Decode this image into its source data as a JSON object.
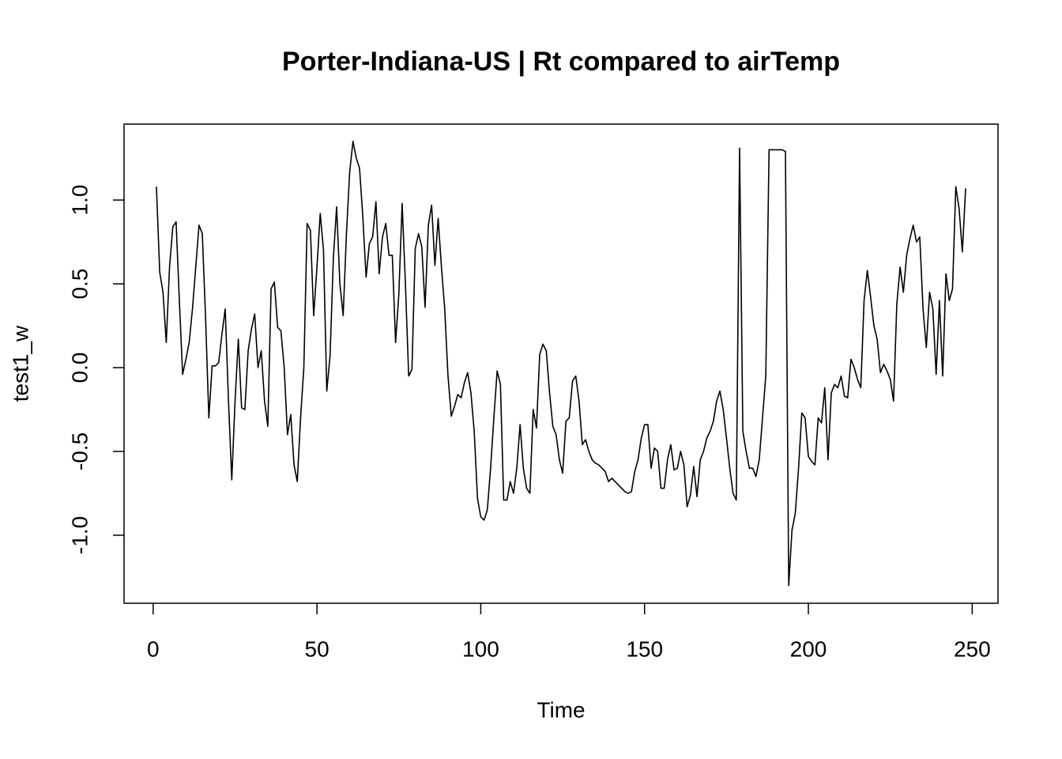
{
  "chart_data": {
    "type": "line",
    "title": "Porter-Indiana-US | Rt compared to airTemp",
    "xlabel": "Time",
    "ylabel": "test1_w",
    "color": "#000000",
    "x": [
      1,
      2,
      3,
      4,
      5,
      6,
      7,
      8,
      9,
      10,
      11,
      12,
      13,
      14,
      15,
      16,
      17,
      18,
      19,
      20,
      21,
      22,
      23,
      24,
      25,
      26,
      27,
      28,
      29,
      30,
      31,
      32,
      33,
      34,
      35,
      36,
      37,
      38,
      39,
      40,
      41,
      42,
      43,
      44,
      45,
      46,
      47,
      48,
      49,
      50,
      51,
      52,
      53,
      54,
      55,
      56,
      57,
      58,
      59,
      60,
      61,
      62,
      63,
      64,
      65,
      66,
      67,
      68,
      69,
      70,
      71,
      72,
      73,
      74,
      75,
      76,
      77,
      78,
      79,
      80,
      81,
      82,
      83,
      84,
      85,
      86,
      87,
      88,
      89,
      90,
      91,
      92,
      93,
      94,
      95,
      96,
      97,
      98,
      99,
      100,
      101,
      102,
      103,
      104,
      105,
      106,
      107,
      108,
      109,
      110,
      111,
      112,
      113,
      114,
      115,
      116,
      117,
      118,
      119,
      120,
      121,
      122,
      123,
      124,
      125,
      126,
      127,
      128,
      129,
      130,
      131,
      132,
      133,
      134,
      135,
      136,
      137,
      138,
      139,
      140,
      141,
      142,
      143,
      144,
      145,
      146,
      147,
      148,
      149,
      150,
      151,
      152,
      153,
      154,
      155,
      156,
      157,
      158,
      159,
      160,
      161,
      162,
      163,
      164,
      165,
      166,
      167,
      168,
      169,
      170,
      171,
      172,
      173,
      174,
      175,
      176,
      177,
      178,
      179,
      180,
      181,
      182,
      183,
      184,
      185,
      186,
      187,
      188,
      189,
      190,
      191,
      192,
      193,
      194,
      195,
      196,
      197,
      198,
      199,
      200,
      201,
      202,
      203,
      204,
      205,
      206,
      207,
      208,
      209,
      210,
      211,
      212,
      213,
      214,
      215,
      216,
      217,
      218,
      219,
      220,
      221,
      222,
      223,
      224,
      225,
      226,
      227,
      228,
      229,
      230,
      231,
      232,
      233,
      234,
      235,
      236,
      237,
      238,
      239,
      240,
      241,
      242,
      243,
      244,
      245,
      246,
      247,
      248
    ],
    "values": [
      1.08,
      0.57,
      0.45,
      0.15,
      0.6,
      0.84,
      0.87,
      0.4,
      -0.04,
      0.05,
      0.15,
      0.35,
      0.6,
      0.85,
      0.8,
      0.3,
      -0.3,
      0.01,
      0.01,
      0.03,
      0.2,
      0.35,
      -0.2,
      -0.67,
      -0.2,
      0.17,
      -0.24,
      -0.25,
      0.1,
      0.23,
      0.32,
      0.0,
      0.1,
      -0.2,
      -0.35,
      0.47,
      0.51,
      0.24,
      0.22,
      0.0,
      -0.4,
      -0.28,
      -0.58,
      -0.68,
      -0.3,
      0.0,
      0.86,
      0.82,
      0.31,
      0.6,
      0.92,
      0.7,
      -0.14,
      0.07,
      0.65,
      0.96,
      0.5,
      0.31,
      0.8,
      1.17,
      1.35,
      1.25,
      1.19,
      0.9,
      0.54,
      0.74,
      0.78,
      0.99,
      0.56,
      0.78,
      0.86,
      0.67,
      0.67,
      0.15,
      0.44,
      0.98,
      0.5,
      -0.05,
      -0.01,
      0.71,
      0.8,
      0.72,
      0.36,
      0.85,
      0.97,
      0.61,
      0.89,
      0.6,
      0.35,
      -0.05,
      -0.29,
      -0.23,
      -0.16,
      -0.18,
      -0.09,
      -0.03,
      -0.15,
      -0.38,
      -0.78,
      -0.89,
      -0.91,
      -0.85,
      -0.6,
      -0.3,
      -0.02,
      -0.1,
      -0.79,
      -0.79,
      -0.68,
      -0.75,
      -0.6,
      -0.34,
      -0.6,
      -0.72,
      -0.75,
      -0.25,
      -0.36,
      0.08,
      0.14,
      0.1,
      -0.15,
      -0.35,
      -0.4,
      -0.55,
      -0.63,
      -0.32,
      -0.3,
      -0.08,
      -0.05,
      -0.2,
      -0.46,
      -0.43,
      -0.5,
      -0.55,
      -0.57,
      -0.58,
      -0.6,
      -0.62,
      -0.68,
      -0.66,
      -0.68,
      -0.7,
      -0.72,
      -0.74,
      -0.75,
      -0.74,
      -0.62,
      -0.55,
      -0.42,
      -0.34,
      -0.34,
      -0.6,
      -0.48,
      -0.5,
      -0.72,
      -0.72,
      -0.55,
      -0.46,
      -0.61,
      -0.6,
      -0.5,
      -0.58,
      -0.83,
      -0.76,
      -0.59,
      -0.77,
      -0.55,
      -0.5,
      -0.42,
      -0.38,
      -0.32,
      -0.2,
      -0.14,
      -0.25,
      -0.42,
      -0.6,
      -0.75,
      -0.79,
      1.31,
      -0.38,
      -0.5,
      -0.6,
      -0.6,
      -0.65,
      -0.55,
      -0.3,
      -0.05,
      1.3,
      1.3,
      1.3,
      1.3,
      1.3,
      1.29,
      -1.3,
      -0.97,
      -0.87,
      -0.6,
      -0.27,
      -0.3,
      -0.53,
      -0.56,
      -0.58,
      -0.3,
      -0.33,
      -0.12,
      -0.55,
      -0.15,
      -0.1,
      -0.12,
      -0.05,
      -0.17,
      -0.18,
      0.05,
      0.0,
      -0.07,
      -0.12,
      0.4,
      0.58,
      0.42,
      0.25,
      0.17,
      -0.03,
      0.02,
      -0.02,
      -0.07,
      -0.2,
      0.38,
      0.6,
      0.45,
      0.67,
      0.77,
      0.85,
      0.75,
      0.78,
      0.35,
      0.12,
      0.45,
      0.35,
      -0.04,
      0.4,
      -0.05,
      0.56,
      0.4,
      0.47,
      1.08,
      0.95,
      0.69,
      1.07
    ],
    "xlim": [
      -8.88,
      257.88
    ],
    "xticks": [
      0,
      50,
      100,
      150,
      200,
      250
    ],
    "ylim": [
      -1.406,
      1.453
    ],
    "yticks": [
      {
        "value": -1.0,
        "label": "-1.0"
      },
      {
        "value": -0.5,
        "label": "-0.5"
      },
      {
        "value": 0,
        "label": "0.0"
      },
      {
        "value": 0.5,
        "label": "0.5"
      },
      {
        "value": 1.0,
        "label": "1.0"
      }
    ],
    "grid": false
  }
}
